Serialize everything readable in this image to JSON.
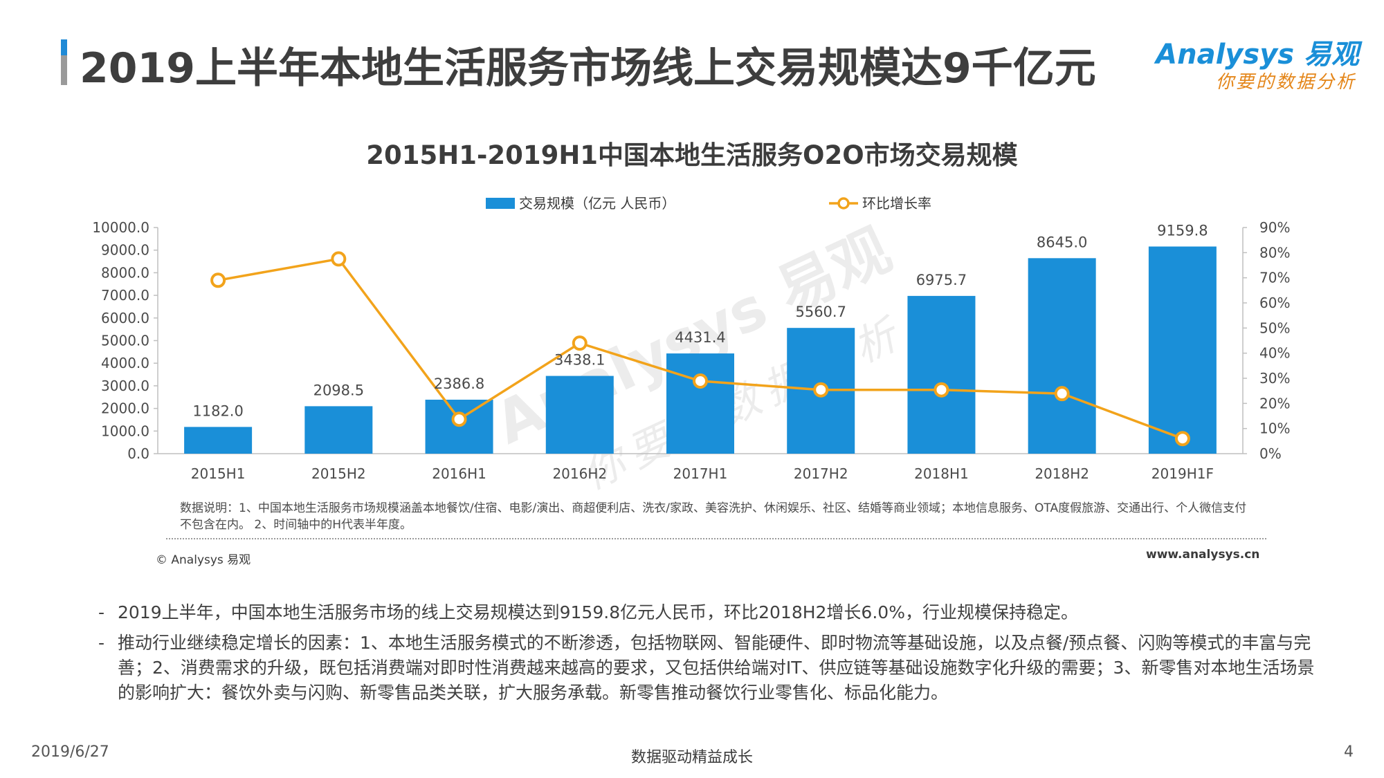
{
  "header": {
    "title": "2019上半年本地生活服务市场线上交易规模达9千亿元",
    "logo_brand": "Analysys 易观",
    "logo_slogan": "你要的数据分析"
  },
  "watermark": {
    "brand": "Analysys 易观",
    "slogan": "你要的数据分析"
  },
  "colors": {
    "bar": "#1a8fd8",
    "line": "#f2a31b",
    "title_accent": "#1f8ad6"
  },
  "chart_data": {
    "type": "bar",
    "title": "2015H1-2019H1中国本地生活服务O2O市场交易规模",
    "categories": [
      "2015H1",
      "2015H2",
      "2016H1",
      "2016H2",
      "2017H1",
      "2017H2",
      "2018H1",
      "2018H2",
      "2019H1F"
    ],
    "series": [
      {
        "name": "交易规模（亿元 人民币）",
        "type": "bar",
        "axis": "left",
        "values": [
          1182.0,
          2098.5,
          2386.8,
          3438.1,
          4431.4,
          5560.7,
          6975.7,
          8645.0,
          9159.8
        ],
        "labels": [
          "1182.0",
          "2098.5",
          "2386.8",
          "3438.1",
          "4431.4",
          "5560.7",
          "6975.7",
          "8645.0",
          "9159.8"
        ]
      },
      {
        "name": "环比增长率",
        "type": "line",
        "axis": "right",
        "values": [
          69.0,
          77.5,
          13.7,
          44.0,
          28.9,
          25.4,
          25.4,
          23.9,
          6.0
        ]
      }
    ],
    "y_left": {
      "range": [
        0,
        10000
      ],
      "ticks": [
        "0.0",
        "1000.0",
        "2000.0",
        "3000.0",
        "4000.0",
        "5000.0",
        "6000.0",
        "7000.0",
        "8000.0",
        "9000.0",
        "10000.0"
      ]
    },
    "y_right": {
      "range": [
        0,
        90
      ],
      "ticks": [
        "0%",
        "10%",
        "20%",
        "30%",
        "40%",
        "50%",
        "60%",
        "70%",
        "80%",
        "90%"
      ]
    },
    "legend": "top-center",
    "grid": false
  },
  "note": "数据说明：1、中国本地生活服务市场规模涵盖本地餐饮/住宿、电影/演出、商超便利店、洗衣/家政、美容洗护、休闲娱乐、社区、结婚等商业领域；本地信息服务、OTA度假旅游、交通出行、个人微信支付不包含在内。 2、时间轴中的H代表半年度。",
  "copyright": "© Analysys 易观",
  "website": "www.analysys.cn",
  "bullets": [
    "2019上半年，中国本地生活服务市场的线上交易规模达到9159.8亿元人民币，环比2018H2增长6.0%，行业规模保持稳定。",
    "推动行业继续稳定增长的因素：1、本地生活服务模式的不断渗透，包括物联网、智能硬件、即时物流等基础设施，以及点餐/预点餐、闪购等模式的丰富与完善；2、消费需求的升级，既包括消费端对即时性消费越来越高的要求，又包括供给端对IT、供应链等基础设施数字化升级的需要；3、新零售对本地生活场景的影响扩大：餐饮外卖与闪购、新零售品类关联，扩大服务承载。新零售推动餐饮行业零售化、标品化能力。"
  ],
  "bullet_marker": "-",
  "footer": {
    "date": "2019/6/27",
    "slogan": "数据驱动精益成长",
    "page": "4"
  }
}
